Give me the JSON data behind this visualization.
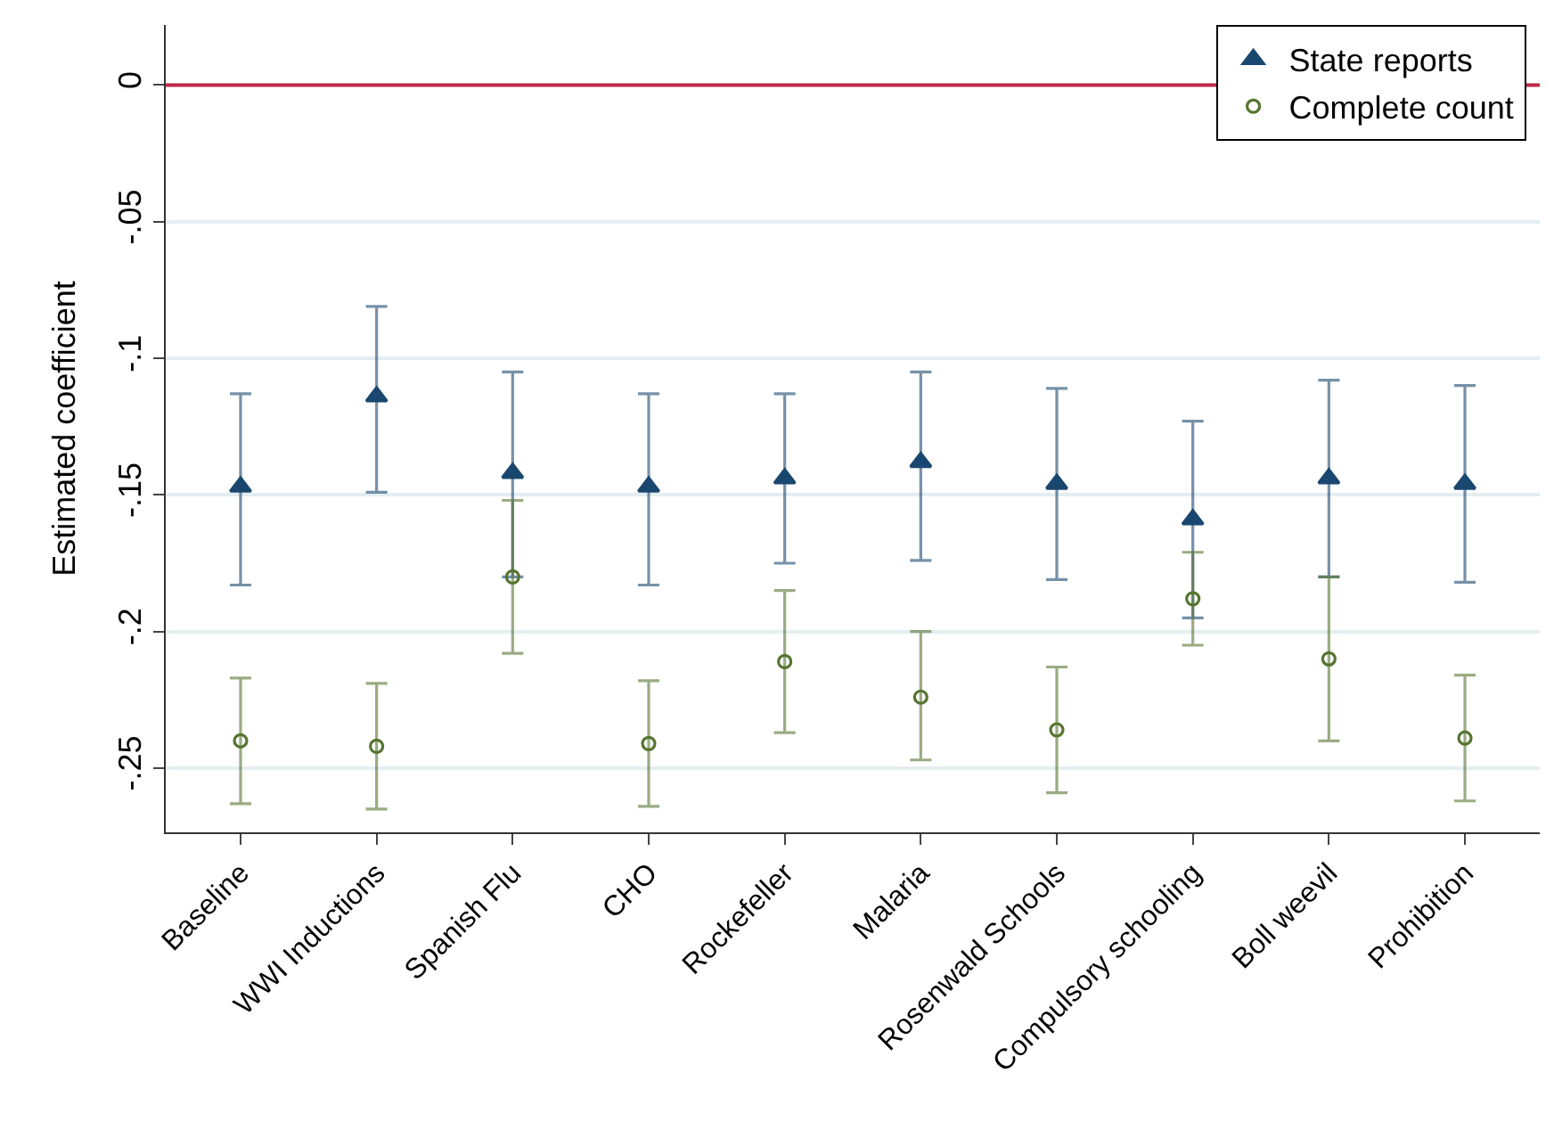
{
  "chart_data": {
    "type": "scatter",
    "ylabel": "Estimated coefficient",
    "categories": [
      "Baseline",
      "WWI Inductions",
      "Spanish Flu",
      "CHO",
      "Rockefeller",
      "Malaria",
      "Rosenwald Schools",
      "Compulsory schooling",
      "Boll weevil",
      "Prohibition"
    ],
    "series": [
      {
        "name": "State reports",
        "color": "#1a476f",
        "marker": "triangle",
        "values": [
          -0.147,
          -0.114,
          -0.142,
          -0.147,
          -0.144,
          -0.138,
          -0.146,
          -0.159,
          -0.144,
          -0.146
        ],
        "errors": [
          [
            -0.183,
            -0.113
          ],
          [
            -0.149,
            -0.081
          ],
          [
            -0.18,
            -0.105
          ],
          [
            -0.183,
            -0.113
          ],
          [
            -0.175,
            -0.113
          ],
          [
            -0.174,
            -0.105
          ],
          [
            -0.181,
            -0.111
          ],
          [
            -0.195,
            -0.123
          ],
          [
            -0.18,
            -0.108
          ],
          [
            -0.182,
            -0.11
          ]
        ]
      },
      {
        "name": "Complete count",
        "color": "#55752f",
        "marker": "circle",
        "values": [
          -0.24,
          -0.242,
          -0.18,
          -0.241,
          -0.211,
          -0.224,
          -0.236,
          -0.188,
          -0.21,
          -0.239
        ],
        "errors": [
          [
            -0.263,
            -0.217
          ],
          [
            -0.265,
            -0.219
          ],
          [
            -0.208,
            -0.152
          ],
          [
            -0.264,
            -0.218
          ],
          [
            -0.237,
            -0.185
          ],
          [
            -0.247,
            -0.2
          ],
          [
            -0.259,
            -0.213
          ],
          [
            -0.205,
            -0.171
          ],
          [
            -0.24,
            -0.18
          ],
          [
            -0.262,
            -0.216
          ]
        ]
      }
    ],
    "ylim": [
      -0.2735,
      0.022
    ],
    "yticks": [
      {
        "value": 0,
        "label": "0"
      },
      {
        "value": -0.05,
        "label": "-.05"
      },
      {
        "value": -0.1,
        "label": "-.1"
      },
      {
        "value": -0.15,
        "label": "-.15"
      },
      {
        "value": -0.2,
        "label": "-.2"
      },
      {
        "value": -0.25,
        "label": "-.25"
      }
    ],
    "ref_lines": [
      {
        "axis": "y",
        "value": 0,
        "color": "#c0284a"
      }
    ],
    "grid": "y",
    "legend": "top right"
  }
}
